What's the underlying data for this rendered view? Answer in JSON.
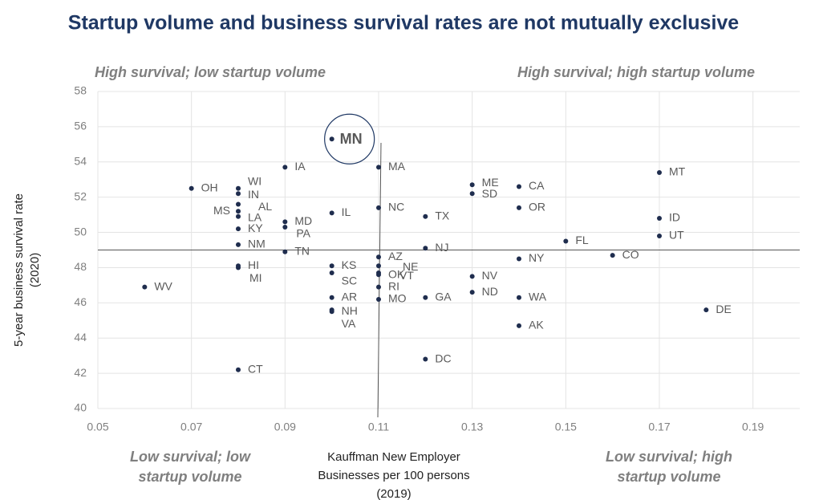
{
  "chart_data": {
    "type": "scatter",
    "title": "Startup volume and business survival rates are not mutually exclusive",
    "y_label": [
      "5-year business survival rate",
      "(2020)"
    ],
    "x_label": [
      "Kauffman New Employer",
      "Businesses per 100 persons",
      "(2019)"
    ],
    "annotations": [
      "High survival; low startup volume",
      "High survival; high startup volume",
      "Low survival; low startup volume",
      "Low survival; high startup volume"
    ],
    "color": "#1f2d4e",
    "labels": [
      "MN",
      "IA",
      "MA",
      "OH",
      "WI",
      "IN",
      "AL",
      "MS",
      "LA",
      "KY",
      "NM",
      "HI",
      "MI",
      "MD",
      "PA",
      "TN",
      "IL",
      "KS",
      "SC",
      "AR",
      "NH",
      "VA",
      "NC",
      "AZ",
      "NE",
      "OK",
      "VT",
      "RI",
      "MO",
      "TX",
      "NJ",
      "GA",
      "DC",
      "ME",
      "SD",
      "NV",
      "ND",
      "CA",
      "OR",
      "NY",
      "WA",
      "AK",
      "FL",
      "CO",
      "MT",
      "ID",
      "UT",
      "DE",
      "WV",
      "CT"
    ],
    "x": [
      0.1,
      0.09,
      0.11,
      0.07,
      0.08,
      0.08,
      0.08,
      0.08,
      0.08,
      0.08,
      0.08,
      0.08,
      0.08,
      0.09,
      0.09,
      0.09,
      0.1,
      0.1,
      0.1,
      0.1,
      0.1,
      0.1,
      0.11,
      0.11,
      0.11,
      0.11,
      0.11,
      0.11,
      0.11,
      0.12,
      0.12,
      0.12,
      0.12,
      0.13,
      0.13,
      0.13,
      0.13,
      0.14,
      0.14,
      0.14,
      0.14,
      0.14,
      0.15,
      0.16,
      0.17,
      0.17,
      0.17,
      0.18,
      0.06,
      0.08
    ],
    "values": [
      55.3,
      53.7,
      53.7,
      52.5,
      52.5,
      52.2,
      51.6,
      51.2,
      50.9,
      50.2,
      49.3,
      48.1,
      48.0,
      50.6,
      50.3,
      48.9,
      51.1,
      48.1,
      47.7,
      46.3,
      45.6,
      45.5,
      51.4,
      48.6,
      48.1,
      47.7,
      47.6,
      46.9,
      46.2,
      50.9,
      49.1,
      46.3,
      42.8,
      52.7,
      52.2,
      47.5,
      46.6,
      52.6,
      51.4,
      48.5,
      46.3,
      44.7,
      49.5,
      48.7,
      53.4,
      50.8,
      49.8,
      45.6,
      46.9,
      42.2
    ],
    "x_reference": 0.11,
    "y_reference": 49,
    "xlim": [
      0.05,
      0.2
    ],
    "xticks": [
      0.05,
      0.07,
      0.09,
      0.11,
      0.13,
      0.15,
      0.17,
      0.19
    ],
    "ylim": [
      40,
      58
    ],
    "yticks": [
      40,
      42,
      44,
      46,
      48,
      50,
      52,
      54,
      56,
      58
    ],
    "grid": true
  }
}
